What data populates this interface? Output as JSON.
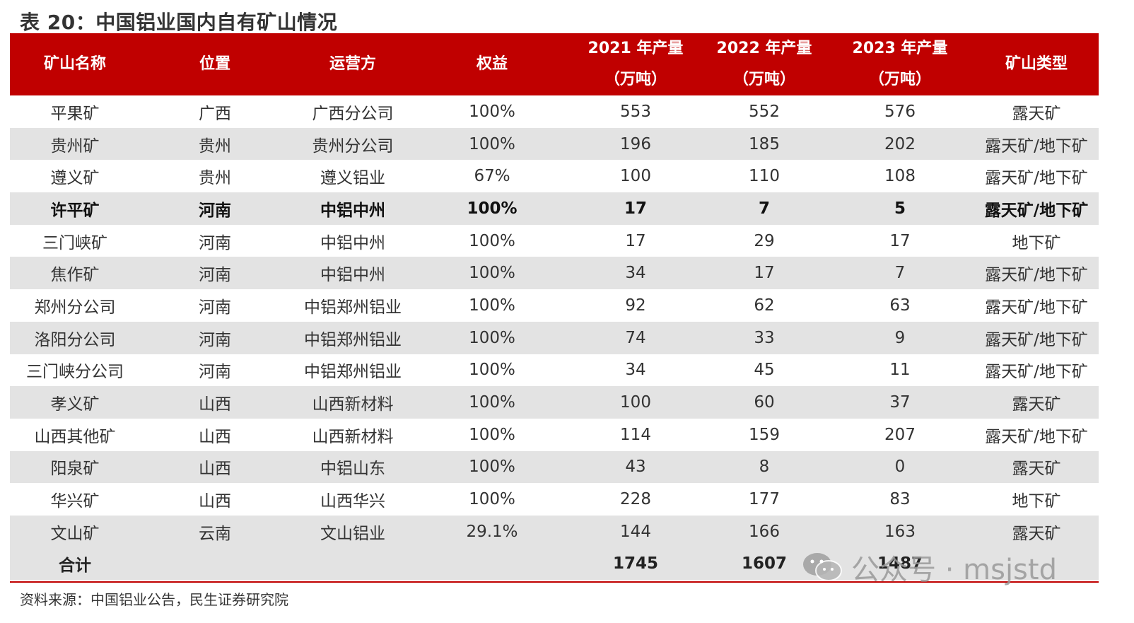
{
  "title": "表 20：中国铝业国内自有矿山情况",
  "header": {
    "mine_name": "矿山名称",
    "location": "位置",
    "operator": "运营方",
    "equity": "权益",
    "y2021_line1": "2021 年产量",
    "y2021_line2": "（万吨）",
    "y2022_line1": "2022 年产量",
    "y2022_line2": "（万吨）",
    "y2023_line1": "2023 年产量",
    "y2023_line2": "（万吨）",
    "mine_type": "矿山类型"
  },
  "rows": [
    {
      "name": "平果矿",
      "location": "广西",
      "operator": "广西分公司",
      "equity": "100%",
      "y2021": "553",
      "y2022": "552",
      "y2023": "576",
      "type": "露天矿"
    },
    {
      "name": "贵州矿",
      "location": "贵州",
      "operator": "贵州分公司",
      "equity": "100%",
      "y2021": "196",
      "y2022": "185",
      "y2023": "202",
      "type": "露天矿/地下矿"
    },
    {
      "name": "遵义矿",
      "location": "贵州",
      "operator": "遵义铝业",
      "equity": "67%",
      "y2021": "100",
      "y2022": "110",
      "y2023": "108",
      "type": "露天矿/地下矿"
    },
    {
      "name": "许平矿",
      "location": "河南",
      "operator": "中铝中州",
      "equity": "100%",
      "y2021": "17",
      "y2022": "7",
      "y2023": "5",
      "type": "露天矿/地下矿"
    },
    {
      "name": "三门峡矿",
      "location": "河南",
      "operator": "中铝中州",
      "equity": "100%",
      "y2021": "17",
      "y2022": "29",
      "y2023": "17",
      "type": "地下矿"
    },
    {
      "name": "焦作矿",
      "location": "河南",
      "operator": "中铝中州",
      "equity": "100%",
      "y2021": "34",
      "y2022": "17",
      "y2023": "7",
      "type": "露天矿/地下矿"
    },
    {
      "name": "郑州分公司",
      "location": "河南",
      "operator": "中铝郑州铝业",
      "equity": "100%",
      "y2021": "92",
      "y2022": "62",
      "y2023": "63",
      "type": "露天矿/地下矿"
    },
    {
      "name": "洛阳分公司",
      "location": "河南",
      "operator": "中铝郑州铝业",
      "equity": "100%",
      "y2021": "74",
      "y2022": "33",
      "y2023": "9",
      "type": "露天矿/地下矿"
    },
    {
      "name": "三门峡分公司",
      "location": "河南",
      "operator": "中铝郑州铝业",
      "equity": "100%",
      "y2021": "34",
      "y2022": "45",
      "y2023": "11",
      "type": "露天矿/地下矿"
    },
    {
      "name": "孝义矿",
      "location": "山西",
      "operator": "山西新材料",
      "equity": "100%",
      "y2021": "100",
      "y2022": "60",
      "y2023": "37",
      "type": "露天矿"
    },
    {
      "name": "山西其他矿",
      "location": "山西",
      "operator": "山西新材料",
      "equity": "100%",
      "y2021": "114",
      "y2022": "159",
      "y2023": "207",
      "type": "露天矿/地下矿"
    },
    {
      "name": "阳泉矿",
      "location": "山西",
      "operator": "中铝山东",
      "equity": "100%",
      "y2021": "43",
      "y2022": "8",
      "y2023": "0",
      "type": "露天矿"
    },
    {
      "name": "华兴矿",
      "location": "山西",
      "operator": "山西华兴",
      "equity": "100%",
      "y2021": "228",
      "y2022": "177",
      "y2023": "83",
      "type": "地下矿"
    },
    {
      "name": "文山矿",
      "location": "云南",
      "operator": "文山铝业",
      "equity": "29.1%",
      "y2021": "144",
      "y2022": "166",
      "y2023": "163",
      "type": "露天矿"
    }
  ],
  "total": {
    "label": "合计",
    "y2021": "1745",
    "y2022": "1607",
    "y2023": "1487"
  },
  "source": "资料来源：中国铝业公告，民生证券研究院",
  "watermark": "公众号 · msjstd",
  "colors": {
    "header_bg": "#c00000",
    "stripe": "#e3e3e3"
  }
}
